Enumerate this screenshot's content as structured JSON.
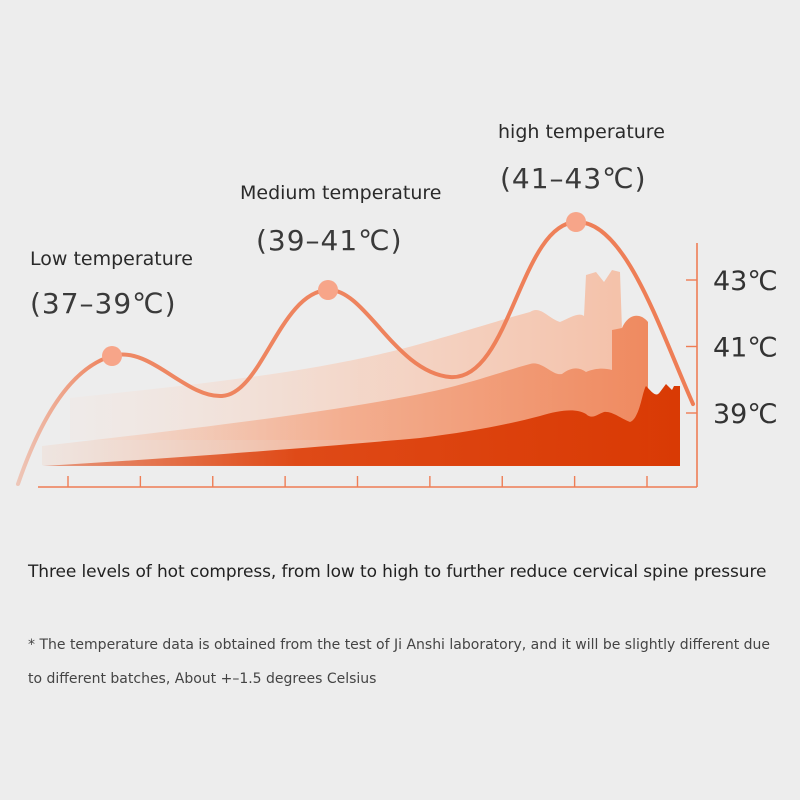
{
  "chart_data": {
    "type": "line",
    "levels": [
      {
        "name": "Low temperature",
        "range": "(37–39℃)",
        "peak": 39
      },
      {
        "name": "Medium temperature",
        "range": "(39–41℃)",
        "peak": 41
      },
      {
        "name": "high temperature",
        "range": "(41–43℃)",
        "peak": 43
      }
    ],
    "y_ticks": [
      "43℃",
      "41℃",
      "39℃"
    ],
    "ylim": [
      37,
      44
    ],
    "x_tick_count": 9,
    "grid": false
  },
  "colors": {
    "curve": "#ee7d55",
    "peak_marker": "#f7a589",
    "area_light": "#f7d2c2",
    "area_mid": "#f4a982",
    "area_dark": "#de3a06",
    "axis": "#ee7d55"
  },
  "caption": {
    "headline": "Three levels of hot compress, from low to high to further reduce cervical spine pressure",
    "footnote": "* The temperature data is obtained from the test of Ji Anshi laboratory, and it will be slightly different due to different batches, About +–1.5 degrees Celsius"
  }
}
